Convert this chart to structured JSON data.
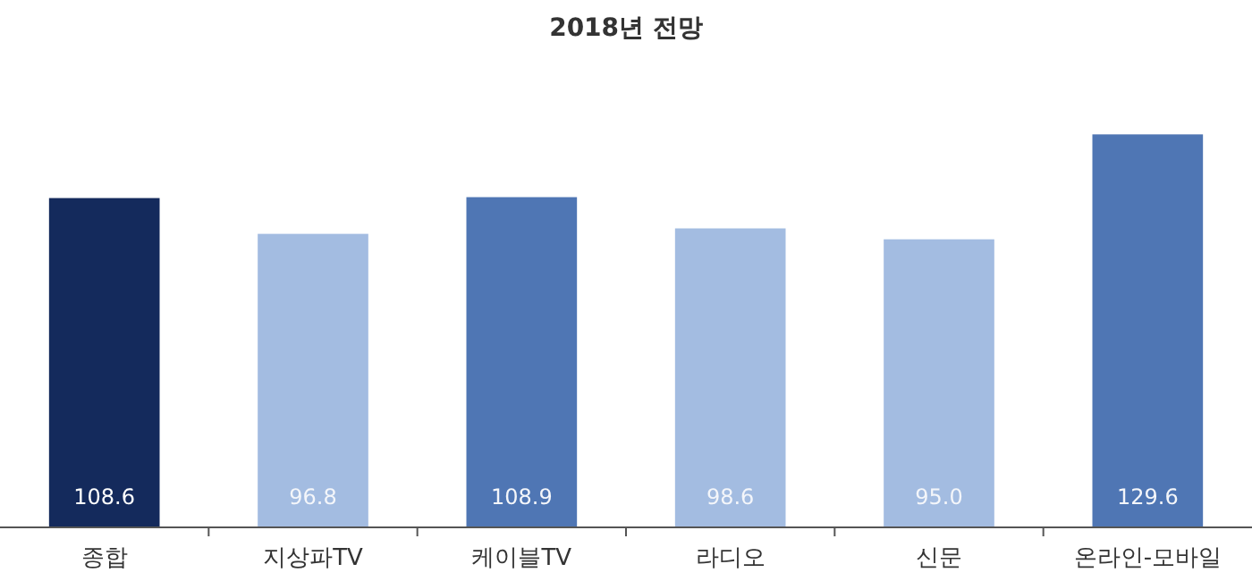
{
  "chart_data": {
    "type": "bar",
    "title": "2018년 전망",
    "categories": [
      "종합",
      "지상파TV",
      "케이블TV",
      "라디오",
      "신문",
      "온라인-모바일"
    ],
    "values": [
      108.6,
      96.8,
      108.9,
      98.6,
      95.0,
      129.6
    ],
    "colors": [
      "#142a5c",
      "#a3bce1",
      "#4f76b4",
      "#a3bce1",
      "#a3bce1",
      "#4f76b4"
    ],
    "value_labels": [
      "108.6",
      "96.8",
      "108.9",
      "98.6",
      "95.0",
      "129.6"
    ]
  }
}
